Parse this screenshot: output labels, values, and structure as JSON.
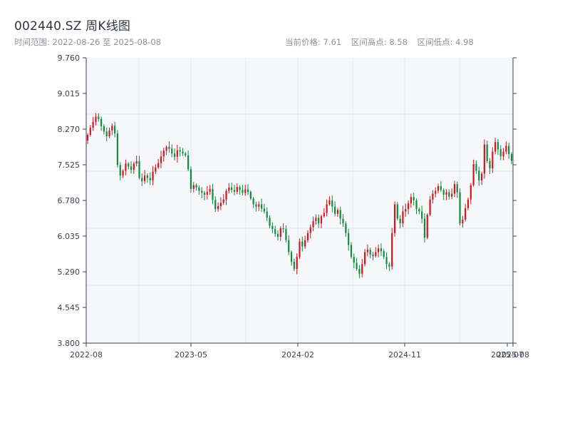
{
  "header": {
    "title": "002440.SZ 周K线图",
    "range_label": "时间范围:",
    "range_start": "2022-08-26",
    "range_sep": "至",
    "range_end": "2025-08-08",
    "price_label": "当前价格:",
    "price_value": "7.61",
    "high_label": "区间高点:",
    "high_value": "8.58",
    "low_label": "区间低点:",
    "low_value": "4.98"
  },
  "colors": {
    "up": "#d4161c",
    "down": "#138a3e",
    "grid": "#e3e7ec",
    "plot_bg": "#f5f7fa",
    "axis": "#3a4350"
  },
  "chart_data": {
    "type": "candlestick",
    "title": "002440.SZ 周K线图",
    "ylim": [
      3.8,
      9.76
    ],
    "y_ticks": [
      "9.760",
      "9.015",
      "8.270",
      "7.525",
      "6.780",
      "6.035",
      "5.290",
      "4.545",
      "3.800"
    ],
    "x_ticks": [
      "2022-08",
      "2023-05",
      "2024-02",
      "2024-11",
      "2025-07",
      "2025-08"
    ],
    "grid": true,
    "closes": [
      8.15,
      8.3,
      8.42,
      8.53,
      8.48,
      8.33,
      8.22,
      8.12,
      8.24,
      8.34,
      8.18,
      7.52,
      7.3,
      7.4,
      7.55,
      7.49,
      7.42,
      7.55,
      7.6,
      7.25,
      7.18,
      7.3,
      7.25,
      7.2,
      7.38,
      7.47,
      7.56,
      7.7,
      7.82,
      7.9,
      7.86,
      7.76,
      7.69,
      7.83,
      7.8,
      7.76,
      7.72,
      7.43,
      7.02,
      7.1,
      7.05,
      6.98,
      6.94,
      6.9,
      6.96,
      7.02,
      6.79,
      6.6,
      6.66,
      6.73,
      6.8,
      6.98,
      7.05,
      7.0,
      6.96,
      7.06,
      7.0,
      6.94,
      7.01,
      6.96,
      6.82,
      6.7,
      6.65,
      6.7,
      6.61,
      6.55,
      6.42,
      6.25,
      6.18,
      6.08,
      6.02,
      6.2,
      6.18,
      5.95,
      5.7,
      5.5,
      5.35,
      5.6,
      5.92,
      5.82,
      5.95,
      6.1,
      6.22,
      6.35,
      6.42,
      6.3,
      6.45,
      6.52,
      6.7,
      6.78,
      6.65,
      6.5,
      6.58,
      6.4,
      6.3,
      6.1,
      5.85,
      5.6,
      5.48,
      5.35,
      5.25,
      5.45,
      5.7,
      5.75,
      5.65,
      5.62,
      5.7,
      5.78,
      5.72,
      5.6,
      5.45,
      5.4,
      6.1,
      6.7,
      6.4,
      6.3,
      6.55,
      6.6,
      6.72,
      6.85,
      6.78,
      6.6,
      6.55,
      6.4,
      6.0,
      6.48,
      6.8,
      6.92,
      6.98,
      7.08,
      7.0,
      6.9,
      6.95,
      6.86,
      6.92,
      7.12,
      6.95,
      6.3,
      6.38,
      6.62,
      6.8,
      7.1,
      7.54,
      7.4,
      7.2,
      7.34,
      7.95,
      7.6,
      7.45,
      7.8,
      8.0,
      7.85,
      7.7,
      7.8,
      7.92,
      7.75,
      7.61
    ],
    "last_close": 7.61
  }
}
